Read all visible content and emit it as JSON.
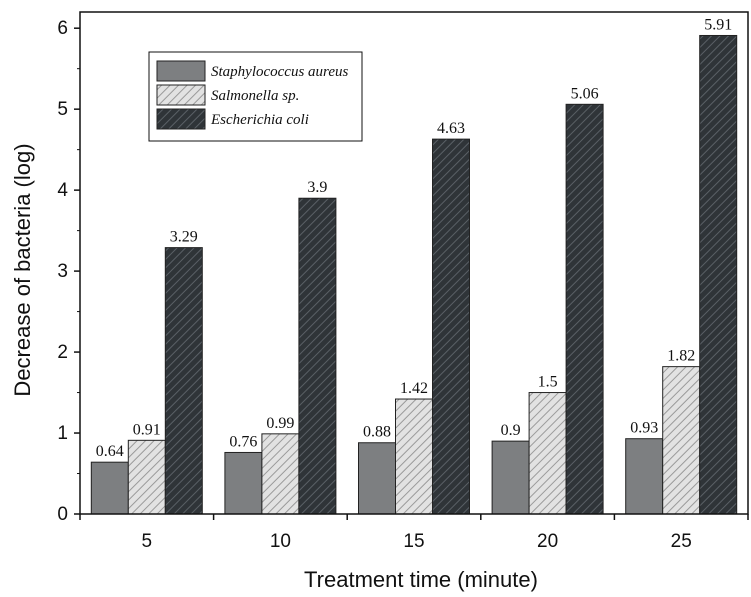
{
  "chart_data": {
    "type": "bar",
    "xlabel": "Treatment time (minute)",
    "ylabel": "Decrease of bacteria (log)",
    "categories": [
      "5",
      "10",
      "15",
      "20",
      "25"
    ],
    "yticks": [
      "0",
      "1",
      "2",
      "3",
      "4",
      "5",
      "6"
    ],
    "ylim": [
      0,
      6.2
    ],
    "grid": false,
    "legend_position": "top-left",
    "series": [
      {
        "name": "Staphylococcus aureus",
        "values": [
          0.64,
          0.76,
          0.88,
          0.9,
          0.93
        ],
        "value_labels": [
          "0.64",
          "0.76",
          "0.88",
          "0.9",
          "0.93"
        ],
        "fill": "#7d7f81",
        "pattern": "solid"
      },
      {
        "name": "Salmonella sp.",
        "values": [
          0.91,
          0.99,
          1.42,
          1.5,
          1.82
        ],
        "value_labels": [
          "0.91",
          "0.99",
          "1.42",
          "1.5",
          "1.82"
        ],
        "fill": "#d4d4d4",
        "pattern": "hatch-light"
      },
      {
        "name": "Escherichia coli",
        "values": [
          3.29,
          3.9,
          4.63,
          5.06,
          5.91
        ],
        "value_labels": [
          "3.29",
          "3.9",
          "4.63",
          "5.06",
          "5.91"
        ],
        "fill": "#3e4347",
        "pattern": "hatch-dark"
      }
    ]
  }
}
